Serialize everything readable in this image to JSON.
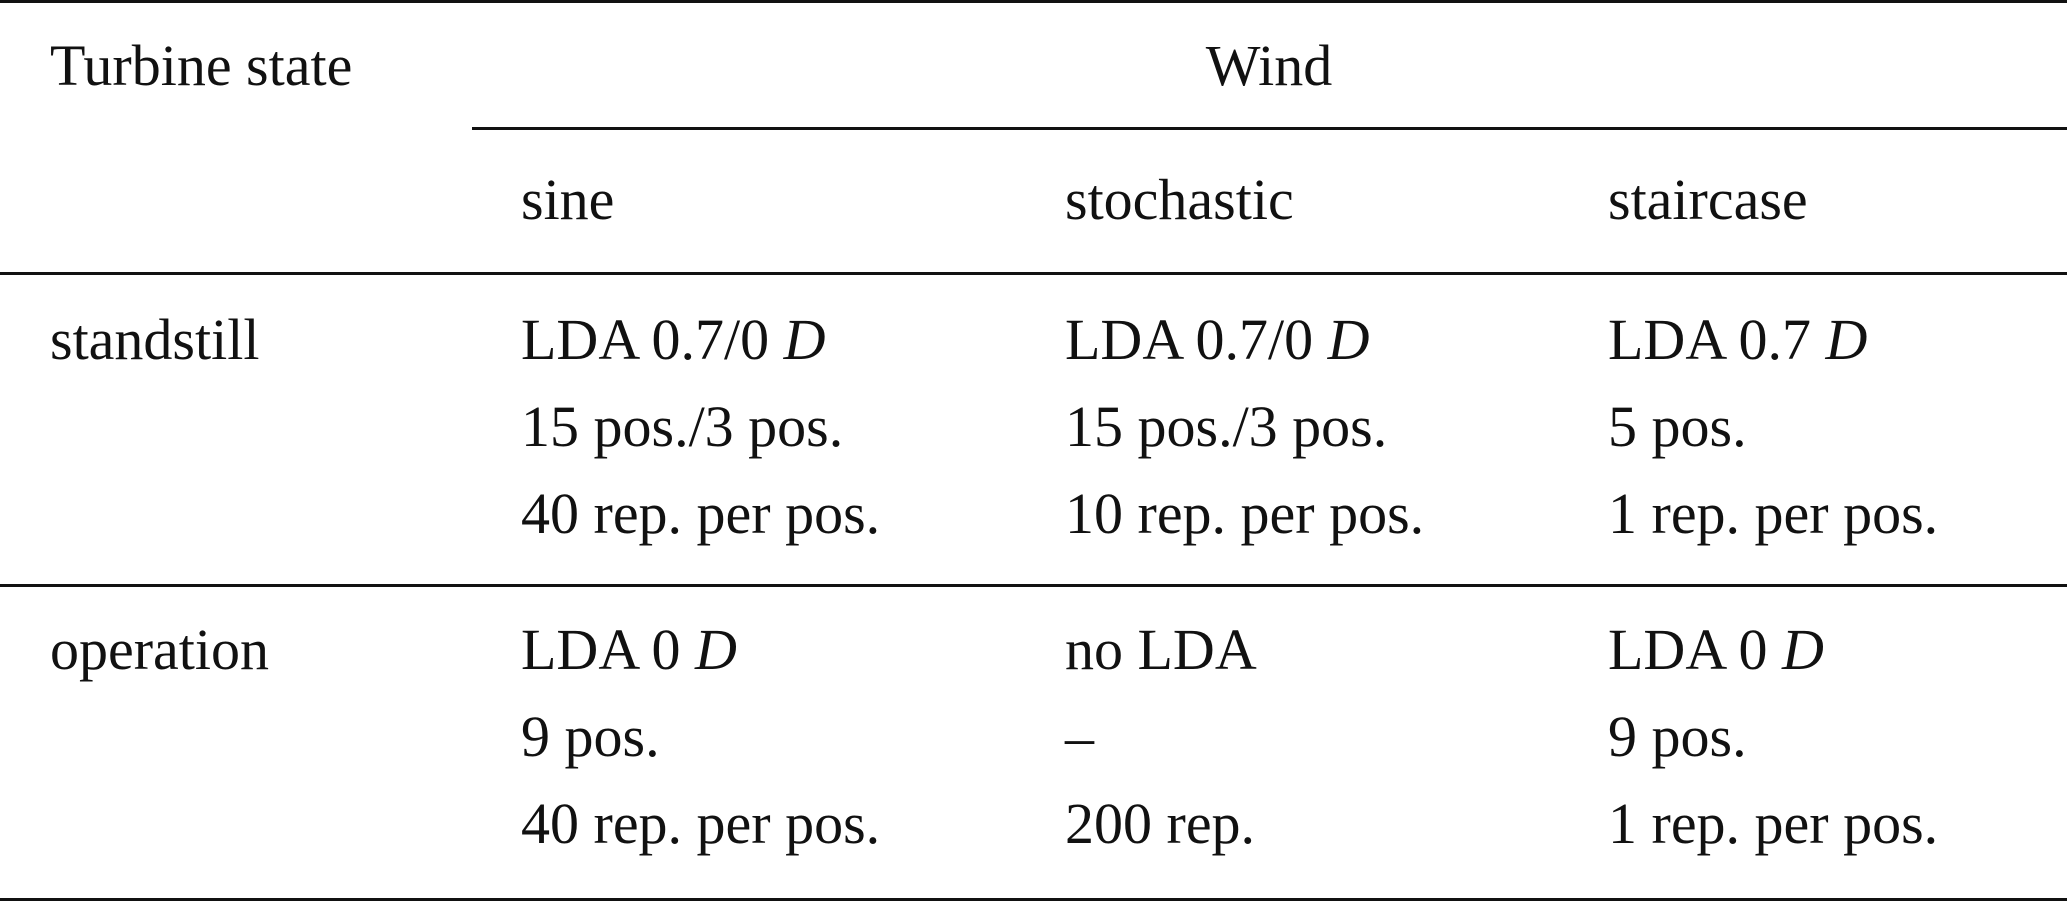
{
  "header": {
    "row_label": "Turbine state",
    "group": "Wind",
    "columns": [
      "sine",
      "stochastic",
      "staircase"
    ]
  },
  "rows": [
    {
      "label": "standstill",
      "cells": [
        [
          {
            "text": "LDA 0.7/0",
            "unit": "D"
          },
          {
            "text": "15 pos./3 pos."
          },
          {
            "text": "40 rep. per pos."
          }
        ],
        [
          {
            "text": "LDA 0.7/0",
            "unit": "D"
          },
          {
            "text": "15 pos./3 pos."
          },
          {
            "text": "10 rep. per pos."
          }
        ],
        [
          {
            "text": "LDA 0.7",
            "unit": "D"
          },
          {
            "text": "5 pos."
          },
          {
            "text": "1 rep. per pos."
          }
        ]
      ]
    },
    {
      "label": "operation",
      "cells": [
        [
          {
            "text": "LDA 0",
            "unit": "D"
          },
          {
            "text": "9 pos."
          },
          {
            "text": "40 rep. per pos."
          }
        ],
        [
          {
            "text": "no LDA"
          },
          {
            "text": "–"
          },
          {
            "text": "200 rep."
          }
        ],
        [
          {
            "text": "LDA 0",
            "unit": "D"
          },
          {
            "text": "9 pos."
          },
          {
            "text": "1 rep. per pos."
          }
        ]
      ]
    }
  ]
}
